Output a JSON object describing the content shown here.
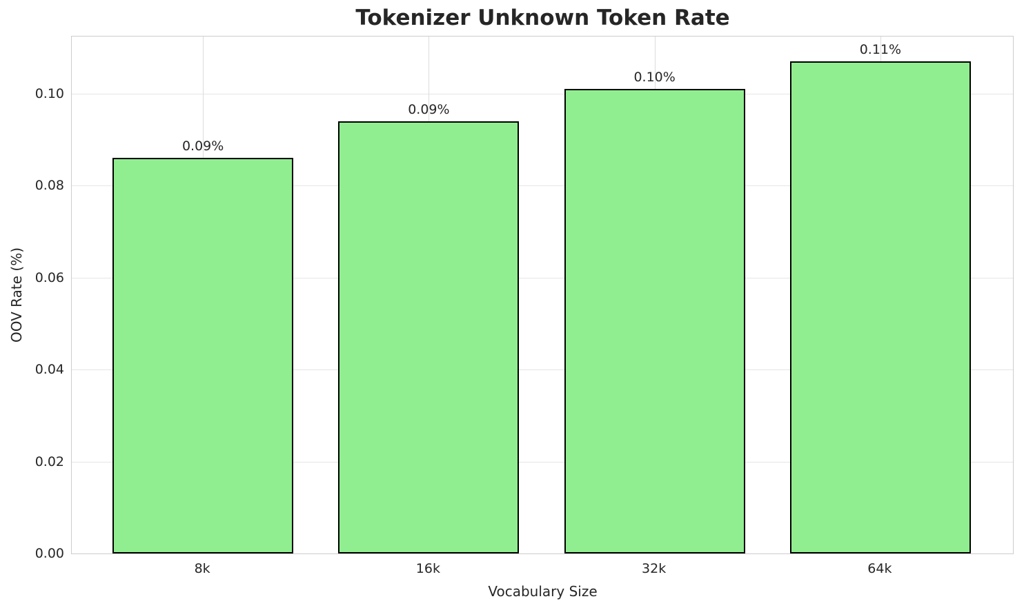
{
  "chart_data": {
    "type": "bar",
    "title": "Tokenizer Unknown Token Rate",
    "xlabel": "Vocabulary Size",
    "ylabel": "OOV Rate (%)",
    "categories": [
      "8k",
      "16k",
      "32k",
      "64k"
    ],
    "values": [
      0.086,
      0.094,
      0.101,
      0.107
    ],
    "bar_labels": [
      "0.09%",
      "0.09%",
      "0.10%",
      "0.11%"
    ],
    "ytick_values": [
      0.0,
      0.02,
      0.04,
      0.06,
      0.08,
      0.1
    ],
    "ytick_labels": [
      "0.00",
      "0.02",
      "0.04",
      "0.06",
      "0.08",
      "0.10"
    ],
    "ylim": [
      0,
      0.1124
    ],
    "grid": true,
    "legend": "none",
    "bar_color": "#90EE90",
    "bar_edge_color": "#000000",
    "text_color": "#262626",
    "grid_color": "#e5e5e5",
    "spine_color": "#cccccc"
  }
}
